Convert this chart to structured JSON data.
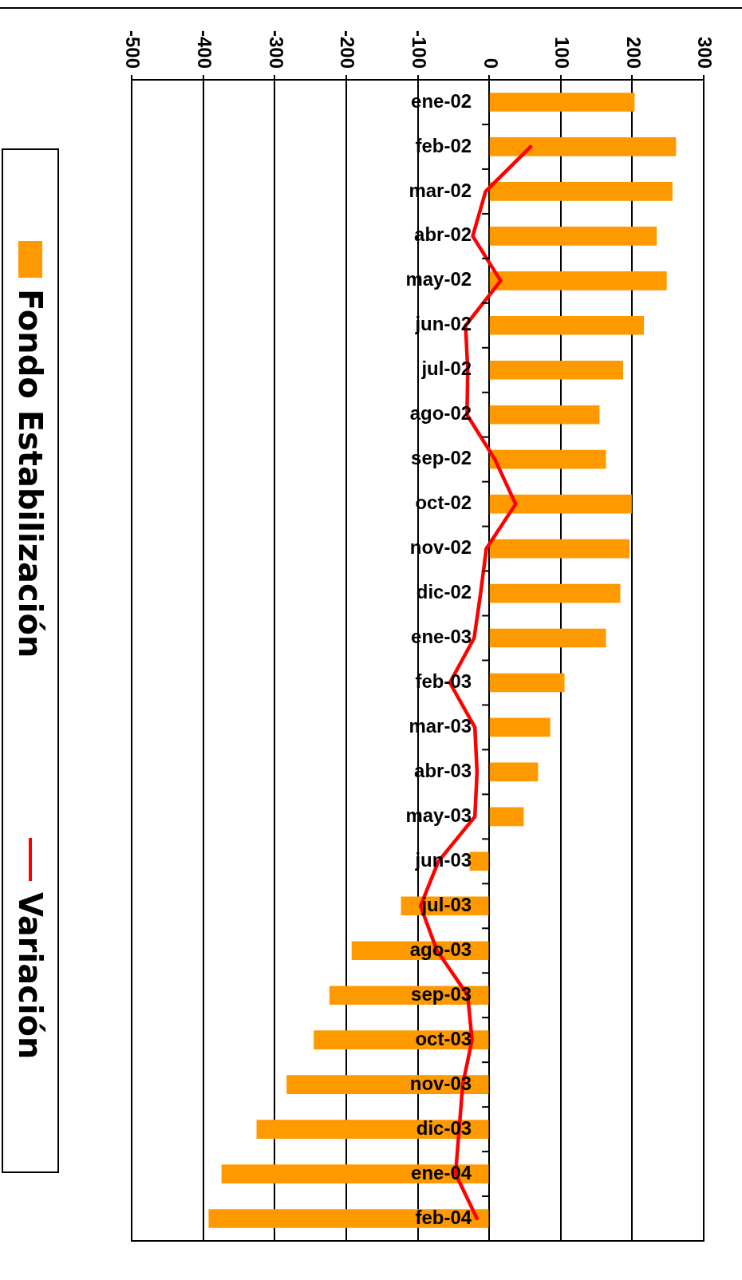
{
  "chart_data": {
    "type": "bar",
    "orientation": "horizontal",
    "categories": [
      "ene-02",
      "feb-02",
      "mar-02",
      "abr-02",
      "may-02",
      "jun-02",
      "jul-02",
      "ago-02",
      "sep-02",
      "oct-02",
      "nov-02",
      "dic-02",
      "ene-03",
      "feb-03",
      "mar-03",
      "abr-03",
      "may-03",
      "jun-03",
      "jul-03",
      "ago-03",
      "sep-03",
      "oct-03",
      "nov-03",
      "dic-03",
      "ene-04",
      "feb-04"
    ],
    "series": [
      {
        "name": "Fondo Estabilización",
        "type": "bar",
        "color": "#ff9900",
        "values": [
          203,
          261,
          256,
          234,
          248,
          216,
          187,
          154,
          163,
          199,
          196,
          183,
          163,
          105,
          85,
          68,
          48,
          -27,
          -123,
          -192,
          -223,
          -245,
          -283,
          -325,
          -374,
          -392
        ]
      },
      {
        "name": "Variación",
        "type": "line",
        "color": "#ff0000",
        "values": [
          null,
          58,
          -5,
          -23,
          16,
          -33,
          -30,
          -31,
          8,
          37,
          -4,
          -12,
          -21,
          -55,
          -20,
          -17,
          -20,
          -71,
          -96,
          -73,
          -30,
          -24,
          -37,
          -42,
          -47,
          -17
        ]
      }
    ],
    "xlim": [
      -500,
      300
    ],
    "xticks": [
      -500,
      -400,
      -300,
      -200,
      -100,
      0,
      100,
      200,
      300
    ],
    "grid": "x",
    "legend": "left",
    "marker": "none"
  }
}
